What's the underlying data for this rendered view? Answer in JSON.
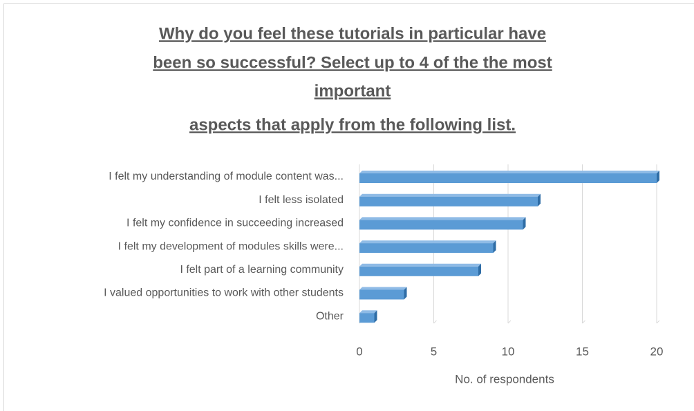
{
  "chart_data": {
    "type": "bar",
    "orientation": "horizontal",
    "title": [
      "Why do you feel these tutorials in particular have",
      "been so successful? Select up to 4 of the the most",
      "important",
      "aspects that apply from the following list."
    ],
    "categories": [
      "I felt my understanding of module content was...",
      "I felt less isolated",
      "I felt my confidence in succeeding increased",
      "I felt my development of modules skills were...",
      "I felt part of a learning community",
      "I valued opportunities to work with other students",
      "Other"
    ],
    "values": [
      20,
      12,
      11,
      9,
      8,
      3,
      1
    ],
    "color": "#5b9bd5",
    "xlabel": "No. of respondents",
    "xlim": [
      0,
      20
    ],
    "xticks": [
      0,
      5,
      10,
      15,
      20
    ],
    "grid": true
  }
}
